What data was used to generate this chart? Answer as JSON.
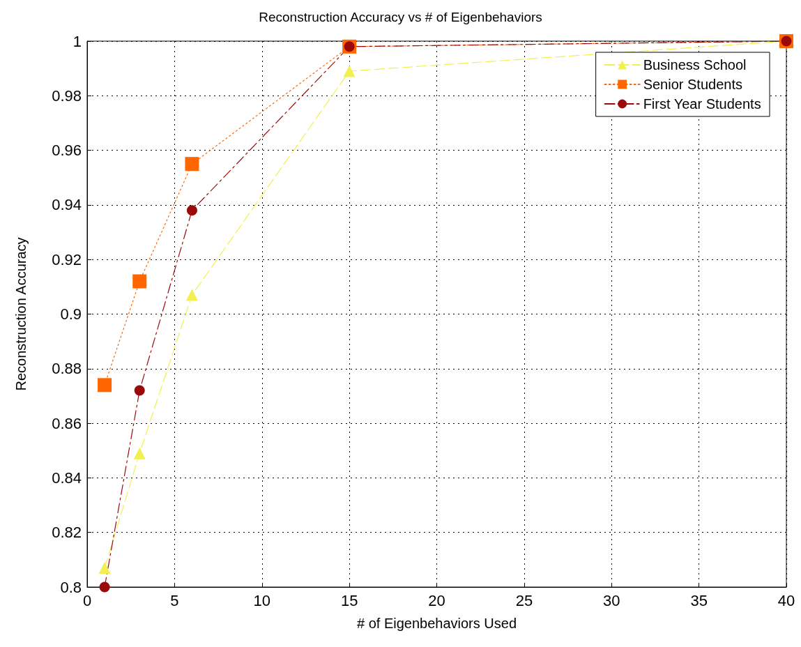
{
  "chart_data": {
    "type": "line",
    "title": "Reconstruction Accuracy vs # of Eigenbehaviors",
    "xlabel": "# of Eigenbehaviors Used",
    "ylabel": "Reconstruction Accuracy",
    "x": [
      1,
      3,
      6,
      15,
      40
    ],
    "series": [
      {
        "name": "Business School",
        "color": "#f2f050",
        "marker": "triangle",
        "line_style": "dashed",
        "values": [
          0.807,
          0.849,
          0.907,
          0.989,
          1.0
        ]
      },
      {
        "name": "Senior Students",
        "color": "#ff6600",
        "marker": "square",
        "line_style": "dotted",
        "values": [
          0.874,
          0.912,
          0.955,
          0.998,
          1.0
        ]
      },
      {
        "name": "First Year Students",
        "color": "#9b0a0a",
        "marker": "circle",
        "line_style": "dashdot",
        "values": [
          0.8,
          0.872,
          0.938,
          0.998,
          1.0
        ]
      }
    ],
    "xlim": [
      0,
      40
    ],
    "xticks": [
      0,
      5,
      10,
      15,
      20,
      25,
      30,
      35,
      40
    ],
    "ylim": [
      0.8,
      1
    ],
    "yticks": [
      0.8,
      0.82,
      0.84,
      0.86,
      0.88,
      0.9,
      0.92,
      0.94,
      0.96,
      0.98,
      1
    ],
    "grid": true,
    "legend": "top right"
  }
}
